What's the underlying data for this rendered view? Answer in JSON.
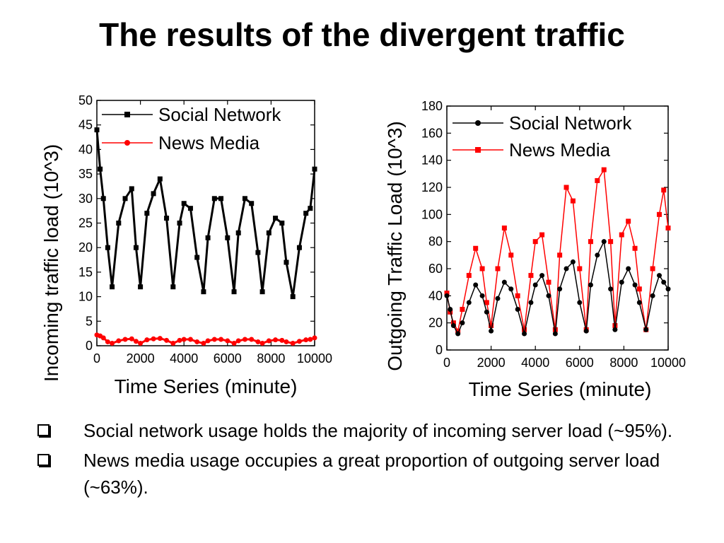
{
  "title": "The results of the divergent traffic",
  "bullets": [
    {
      "text": "Social network usage holds the majority of incoming server load (~95%)."
    },
    {
      "text": "News media usage occupies a great proportion of outgoing server load (~63%)."
    }
  ],
  "colors": {
    "social": "#000000",
    "news": "#ff0000"
  },
  "icons": {
    "bullet": "checkbox-icon"
  },
  "chart_data": [
    {
      "type": "line",
      "title": "",
      "xlabel": "Time Series (minute)",
      "ylabel": "Incoming traffic load (10^3)",
      "xlim": [
        0,
        10000
      ],
      "ylim": [
        0,
        50
      ],
      "xticks": [
        0,
        2000,
        4000,
        6000,
        8000,
        10000
      ],
      "xtick_labels": [
        "0",
        "2000",
        "4000",
        "6000",
        "8000",
        "10000"
      ],
      "yticks": [
        0,
        5,
        10,
        15,
        20,
        25,
        30,
        35,
        40,
        45,
        50
      ],
      "ytick_labels": [
        "0",
        "5",
        "10",
        "15",
        "20",
        "25",
        "30",
        "35",
        "40",
        "45",
        "50"
      ],
      "legend": "top-right",
      "grid": false,
      "series": [
        {
          "name": "Social Network",
          "marker": "square",
          "color": "#000000",
          "x": [
            0,
            150,
            300,
            500,
            700,
            1000,
            1300,
            1600,
            1800,
            2000,
            2300,
            2600,
            2900,
            3200,
            3500,
            3800,
            4000,
            4300,
            4600,
            4900,
            5100,
            5400,
            5700,
            6000,
            6300,
            6500,
            6800,
            7100,
            7400,
            7600,
            7900,
            8200,
            8500,
            8700,
            9000,
            9300,
            9600,
            9800,
            10000
          ],
          "y": [
            44,
            36,
            30,
            20,
            12,
            25,
            30,
            32,
            20,
            12,
            27,
            31,
            34,
            26,
            12,
            25,
            29,
            28,
            18,
            11,
            22,
            30,
            30,
            22,
            11,
            23,
            30,
            29,
            19,
            11,
            23,
            26,
            25,
            17,
            10,
            20,
            27,
            28,
            36
          ]
        },
        {
          "name": "News Media",
          "marker": "circle",
          "color": "#ff0000",
          "x": [
            0,
            150,
            300,
            500,
            700,
            1000,
            1300,
            1600,
            1800,
            2000,
            2300,
            2600,
            2900,
            3200,
            3500,
            3800,
            4000,
            4300,
            4600,
            4900,
            5100,
            5400,
            5700,
            6000,
            6300,
            6500,
            6800,
            7100,
            7400,
            7600,
            7900,
            8200,
            8500,
            8700,
            9000,
            9300,
            9600,
            9800,
            10000
          ],
          "y": [
            2.2,
            2.0,
            1.6,
            0.8,
            0.5,
            1.0,
            1.3,
            1.4,
            0.9,
            0.5,
            1.2,
            1.4,
            1.5,
            1.1,
            0.5,
            1.1,
            1.3,
            1.3,
            0.8,
            0.5,
            1.0,
            1.3,
            1.3,
            1.0,
            0.5,
            1.0,
            1.3,
            1.3,
            0.8,
            0.5,
            1.0,
            1.2,
            1.1,
            0.8,
            0.5,
            0.9,
            1.2,
            1.3,
            1.6
          ]
        }
      ]
    },
    {
      "type": "line",
      "title": "",
      "xlabel": "Time Series (minute)",
      "ylabel": "Outgoing Traffic Load (10^3)",
      "xlim": [
        0,
        10000
      ],
      "ylim": [
        0,
        180
      ],
      "xticks": [
        0,
        2000,
        4000,
        6000,
        8000,
        10000
      ],
      "xtick_labels": [
        "0",
        "2000",
        "4000",
        "6000",
        "8000",
        "10000"
      ],
      "yticks": [
        0,
        20,
        40,
        60,
        80,
        100,
        120,
        140,
        160,
        180
      ],
      "ytick_labels": [
        "0",
        "20",
        "40",
        "60",
        "80",
        "100",
        "120",
        "140",
        "160",
        "180"
      ],
      "legend": "top-right",
      "grid": false,
      "series": [
        {
          "name": "Social Network",
          "marker": "circle",
          "color": "#000000",
          "x": [
            0,
            150,
            300,
            500,
            700,
            1000,
            1300,
            1600,
            1800,
            2000,
            2300,
            2600,
            2900,
            3200,
            3500,
            3800,
            4000,
            4300,
            4600,
            4900,
            5100,
            5400,
            5700,
            6000,
            6300,
            6500,
            6800,
            7100,
            7400,
            7600,
            7900,
            8200,
            8500,
            8700,
            9000,
            9300,
            9600,
            9800,
            10000
          ],
          "y": [
            40,
            30,
            18,
            12,
            20,
            35,
            48,
            40,
            28,
            14,
            38,
            50,
            45,
            30,
            12,
            35,
            48,
            55,
            40,
            12,
            45,
            60,
            65,
            35,
            14,
            48,
            70,
            80,
            45,
            15,
            50,
            60,
            48,
            35,
            15,
            40,
            55,
            50,
            45
          ]
        },
        {
          "name": "News Media",
          "marker": "square",
          "color": "#ff0000",
          "x": [
            0,
            150,
            300,
            500,
            700,
            1000,
            1300,
            1600,
            1800,
            2000,
            2300,
            2600,
            2900,
            3200,
            3500,
            3800,
            4000,
            4300,
            4600,
            4900,
            5100,
            5400,
            5700,
            6000,
            6300,
            6500,
            6800,
            7100,
            7400,
            7600,
            7900,
            8200,
            8500,
            8700,
            9000,
            9300,
            9600,
            9800,
            10000
          ],
          "y": [
            42,
            28,
            20,
            14,
            30,
            55,
            75,
            60,
            35,
            18,
            60,
            90,
            70,
            40,
            15,
            55,
            80,
            85,
            50,
            15,
            70,
            120,
            110,
            60,
            15,
            80,
            125,
            133,
            80,
            18,
            85,
            95,
            75,
            45,
            15,
            60,
            100,
            118,
            90
          ]
        }
      ]
    }
  ]
}
